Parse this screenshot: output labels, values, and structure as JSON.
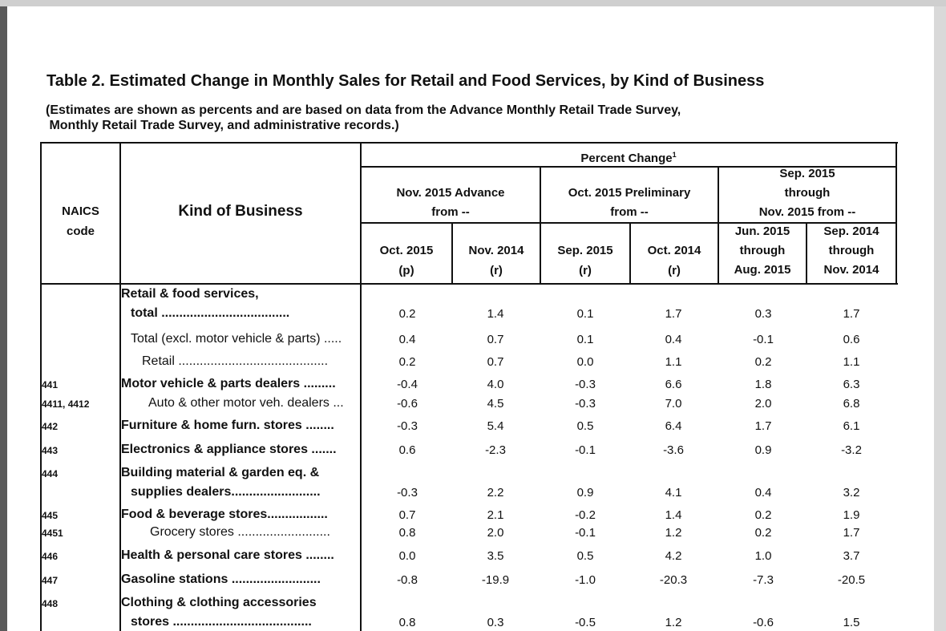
{
  "table": {
    "title": "Table 2.  Estimated Change in Monthly Sales for Retail and Food Services, by Kind of Business",
    "subtitle_line1": "(Estimates are shown as percents and are based on data from the Advance Monthly Retail Trade Survey,",
    "subtitle_line2": " Monthly Retail Trade Survey, and administrative records.)",
    "headers": {
      "naics_line1": "NAICS",
      "naics_line2": "code",
      "kind": "Kind of Business",
      "percent_change": "Percent Change",
      "percent_change_note": "1",
      "group1_line1": "Nov. 2015 Advance",
      "group1_line2": "from --",
      "group2_line1": "Oct. 2015 Preliminary",
      "group2_line2": "from --",
      "group3_line1": "Sep. 2015",
      "group3_line2": "through",
      "group3_line3": "Nov. 2015 from --",
      "col1_line1": "Oct. 2015",
      "col1_line2": "(p)",
      "col2_line1": "Nov. 2014",
      "col2_line2": "(r)",
      "col3_line1": "Sep. 2015",
      "col3_line2": "(r)",
      "col4_line1": "Oct. 2014",
      "col4_line2": "(r)",
      "col5_line1": "Jun. 2015",
      "col5_line2": "through",
      "col5_line3": "Aug. 2015",
      "col6_line1": "Sep. 2014",
      "col6_line2": "through",
      "col6_line3": "Nov. 2014"
    },
    "rows": [
      {
        "code": "",
        "label1": "Retail & food services,",
        "label2": "total ....................................",
        "values": [
          "0.2",
          "1.4",
          "0.1",
          "1.7",
          "0.3",
          "1.7"
        ]
      },
      {
        "code": "",
        "label1": "Total (excl. motor vehicle & parts) .....",
        "values": [
          "0.4",
          "0.7",
          "0.1",
          "0.4",
          "-0.1",
          "0.6"
        ]
      },
      {
        "code": "",
        "label1": "Retail ..........................................",
        "values": [
          "0.2",
          "0.7",
          "0.0",
          "1.1",
          "0.2",
          "1.1"
        ]
      },
      {
        "code": "441",
        "label1": "Motor vehicle & parts dealers .........",
        "values": [
          "-0.4",
          "4.0",
          "-0.3",
          "6.6",
          "1.8",
          "6.3"
        ]
      },
      {
        "code": "4411, 4412",
        "label1": "Auto & other motor veh. dealers ...",
        "values": [
          "-0.6",
          "4.5",
          "-0.3",
          "7.0",
          "2.0",
          "6.8"
        ]
      },
      {
        "code": "442",
        "label1": "Furniture & home furn. stores ........",
        "values": [
          "-0.3",
          "5.4",
          "0.5",
          "6.4",
          "1.7",
          "6.1"
        ]
      },
      {
        "code": "443",
        "label1": "Electronics & appliance stores .......",
        "values": [
          "0.6",
          "-2.3",
          "-0.1",
          "-3.6",
          "0.9",
          "-3.2"
        ]
      },
      {
        "code": "444",
        "label1": "Building material & garden eq. &",
        "label2": "supplies dealers.........................",
        "values": [
          "-0.3",
          "2.2",
          "0.9",
          "4.1",
          "0.4",
          "3.2"
        ]
      },
      {
        "code": "445",
        "label1": "Food & beverage stores.................",
        "values": [
          "0.7",
          "2.1",
          "-0.2",
          "1.4",
          "0.2",
          "1.9"
        ]
      },
      {
        "code": "4451",
        "label1": "Grocery stores ..........................",
        "values": [
          "0.8",
          "2.0",
          "-0.1",
          "1.2",
          "0.2",
          "1.7"
        ]
      },
      {
        "code": "446",
        "label1": "Health & personal care stores ........",
        "values": [
          "0.0",
          "3.5",
          "0.5",
          "4.2",
          "1.0",
          "3.7"
        ]
      },
      {
        "code": "447",
        "label1": "Gasoline stations .........................",
        "values": [
          "-0.8",
          "-19.9",
          "-1.0",
          "-20.3",
          "-7.3",
          "-20.5"
        ]
      },
      {
        "code": "448",
        "label1": "Clothing & clothing accessories",
        "label2": "stores .......................................",
        "values": [
          "0.8",
          "0.3",
          "-0.5",
          "1.2",
          "-0.6",
          "1.5"
        ]
      }
    ]
  }
}
